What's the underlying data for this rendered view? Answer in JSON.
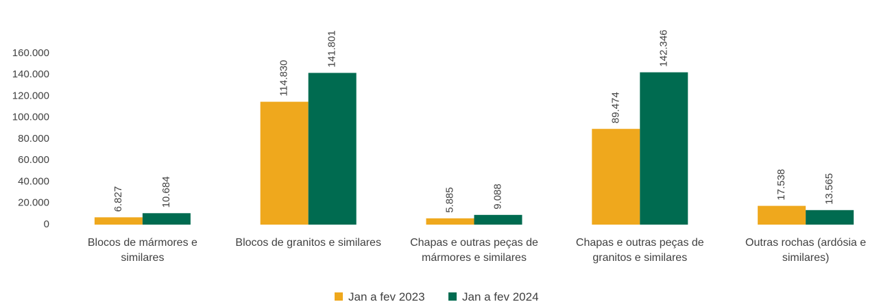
{
  "chart_data": {
    "type": "bar",
    "categories": [
      "Blocos de mármores e similares",
      "Blocos de granitos e similares",
      "Chapas e outras peças de mármores e similares",
      "Chapas e outras peças de granitos e similares",
      "Outras rochas (ardósia e similares)"
    ],
    "series": [
      {
        "name": "Jan a fev 2023",
        "color": "#efa81d",
        "values": [
          6827,
          114830,
          5885,
          89474,
          17538
        ],
        "value_labels": [
          "6.827",
          "114.830",
          "5.885",
          "89.474",
          "17.538"
        ]
      },
      {
        "name": "Jan a fev 2024",
        "color": "#006b50",
        "values": [
          10684,
          141801,
          9088,
          142346,
          13565
        ],
        "value_labels": [
          "10.684",
          "141.801",
          "9.088",
          "142.346",
          "13.565"
        ]
      }
    ],
    "ylim": [
      0,
      160000
    ],
    "yticks": [
      0,
      {
        "value": 20000,
        "label": "20.000"
      },
      {
        "value": 40000,
        "label": "40.000"
      },
      {
        "value": 60000,
        "label": "60.000"
      },
      {
        "value": 80000,
        "label": "80.000"
      },
      {
        "value": 100000,
        "label": "100.000"
      },
      {
        "value": 120000,
        "label": "120.000"
      },
      {
        "value": 140000,
        "label": "140.000"
      },
      {
        "value": 160000,
        "label": "160.000"
      }
    ],
    "grid": false,
    "legend": "bottom"
  }
}
